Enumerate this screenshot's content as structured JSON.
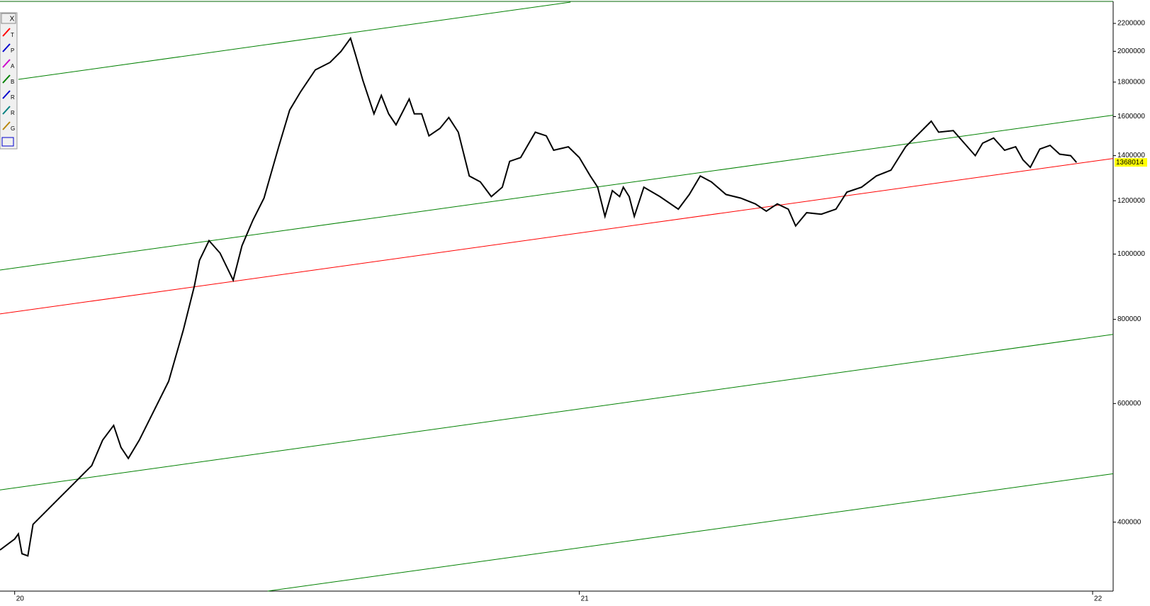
{
  "chart_data": {
    "type": "line",
    "toolbar": {
      "close": "X",
      "tools": [
        "T",
        "P",
        "A",
        "B",
        "R",
        "R",
        "G"
      ]
    },
    "log_y": true,
    "xlim": [
      0,
      1518
    ],
    "xticks": [
      {
        "value": 20,
        "label": "20"
      },
      {
        "value": 790,
        "label": "21"
      },
      {
        "value": 1490,
        "label": "22"
      }
    ],
    "ylim": [
      316000,
      2366000
    ],
    "yticks": [
      400000,
      600000,
      800000,
      1000000,
      1200000,
      1400000,
      1600000,
      1800000,
      2000000,
      2200000
    ],
    "last_price_label": 1368014,
    "series": [
      {
        "color": "#000000",
        "x": [
          0,
          20,
          25,
          30,
          38,
          45,
          60,
          80,
          100,
          115,
          125,
          140,
          155,
          165,
          175,
          190,
          210,
          230,
          250,
          265,
          272,
          285,
          300,
          318,
          330,
          345,
          360,
          380,
          395,
          410,
          430,
          450,
          465,
          478,
          485,
          495,
          510,
          520,
          530,
          540,
          558,
          565,
          575,
          585,
          600,
          612,
          625,
          640,
          655,
          670,
          685,
          695,
          710,
          730,
          745,
          755,
          775,
          790,
          805,
          815,
          825,
          835,
          845,
          850,
          858,
          865,
          878,
          900,
          925,
          940,
          955,
          970,
          990,
          1010,
          1030,
          1045,
          1060,
          1075,
          1085,
          1100,
          1120,
          1140,
          1155,
          1175,
          1195,
          1215,
          1235,
          1250,
          1270,
          1280,
          1300,
          1315,
          1330,
          1340,
          1355,
          1370,
          1385,
          1395,
          1405,
          1418,
          1432,
          1445,
          1460,
          1468
        ],
        "values": [
          363700,
          377600,
          384300,
          359100,
          356400,
          397000,
          412200,
          433400,
          455700,
          473200,
          485200,
          529600,
          556800,
          516400,
          497500,
          529600,
          585500,
          647300,
          771300,
          896500,
          978800,
          1047000,
          1003600,
          914700,
          1029000,
          1123300,
          1211000,
          1443000,
          1636000,
          1741700,
          1877000,
          1925000,
          1999000,
          2091000,
          1974000,
          1808000,
          1615000,
          1720000,
          1615000,
          1555600,
          1699000,
          1615000,
          1615000,
          1498000,
          1537000,
          1595000,
          1517000,
          1306000,
          1280000,
          1217000,
          1257000,
          1373000,
          1391000,
          1517000,
          1498000,
          1426000,
          1443000,
          1391000,
          1306000,
          1257000,
          1137600,
          1242000,
          1217000,
          1257000,
          1217000,
          1137600,
          1257000,
          1217000,
          1166000,
          1226000,
          1306000,
          1280000,
          1226000,
          1211000,
          1187000,
          1158000,
          1187000,
          1166000,
          1101000,
          1152000,
          1146000,
          1166000,
          1236000,
          1257000,
          1306000,
          1332000,
          1443000,
          1498000,
          1575000,
          1517000,
          1525000,
          1461000,
          1400000,
          1461000,
          1487000,
          1426000,
          1443000,
          1380000,
          1345000,
          1432000,
          1450000,
          1407000,
          1400000,
          1368014
        ]
      }
    ],
    "trendlines": [
      {
        "color": "#008000",
        "x": [
          25,
          778
        ],
        "values": [
          1817000,
          2366000
        ]
      },
      {
        "color": "#008000",
        "x": [
          0,
          1518
        ],
        "values": [
          947000,
          1607600
        ]
      },
      {
        "color": "#ff0000",
        "x": [
          0,
          1518
        ],
        "values": [
          815000,
          1386500
        ]
      },
      {
        "color": "#008000",
        "x": [
          0,
          1518
        ],
        "values": [
          446600,
          760000
        ]
      },
      {
        "color": "#008000",
        "x": [
          365,
          1518
        ],
        "values": [
          316000,
          472000
        ]
      }
    ]
  }
}
